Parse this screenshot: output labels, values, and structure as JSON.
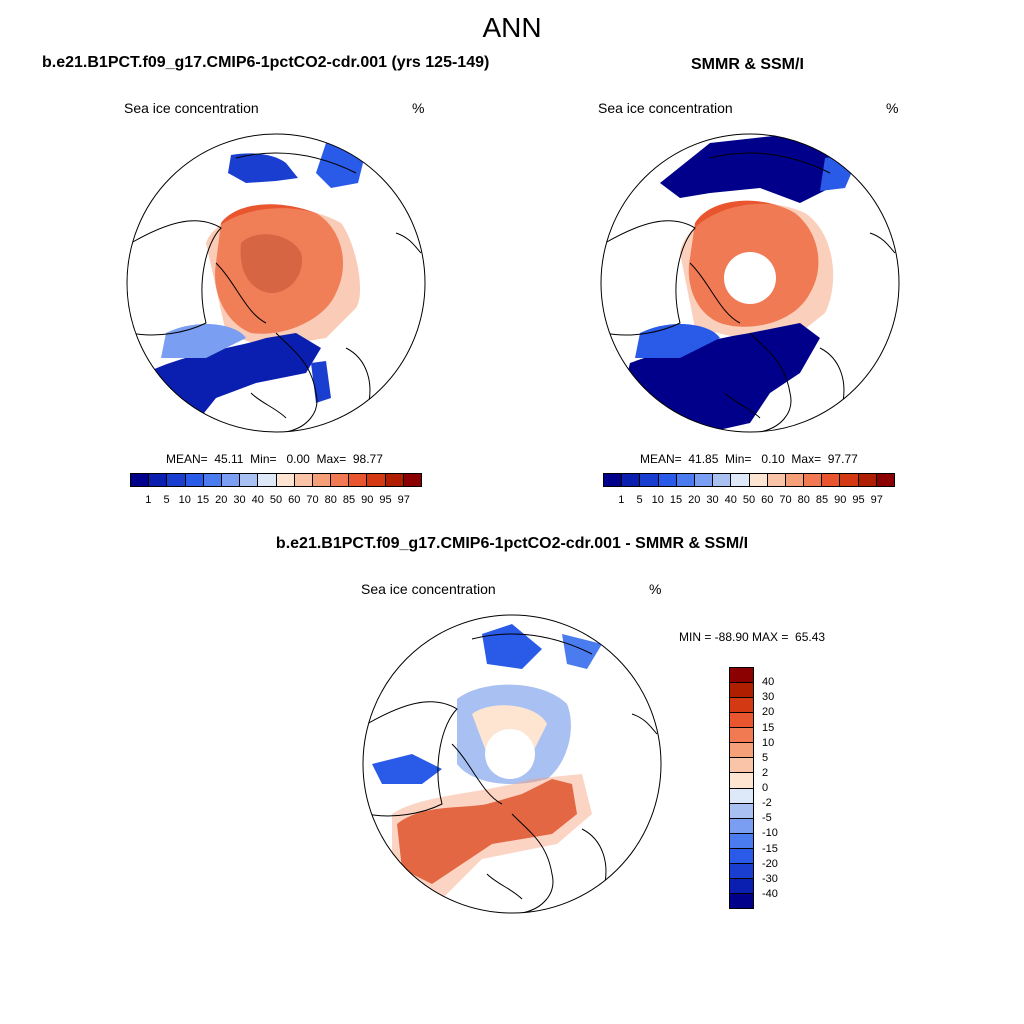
{
  "title": "ANN",
  "colors": {
    "abs_scale": [
      "#00008b",
      "#0a1fb0",
      "#1a3fd0",
      "#2a5ae8",
      "#4a7cf0",
      "#7a9ef2",
      "#a8c0f2",
      "#dde8f8",
      "#fde5d2",
      "#f9c4a8",
      "#f6a07a",
      "#f17a52",
      "#e8552e",
      "#d33a14",
      "#b01e00",
      "#8b0000"
    ],
    "diff_scale": [
      "#8b0000",
      "#b01e00",
      "#d33a14",
      "#e8552e",
      "#f17a52",
      "#f6a07a",
      "#f9c4a8",
      "#fde5d2",
      "#dde8f8",
      "#a8c0f2",
      "#7a9ef2",
      "#4a7cf0",
      "#2a5ae8",
      "#1a3fd0",
      "#0a1fb0",
      "#00008b"
    ],
    "land_outline": "#000000"
  },
  "panels": {
    "model": {
      "title": "b.e21.B1PCT.f09_g17.CMIP6-1pctCO2-cdr.001 (yrs 125-149)",
      "field": "Sea ice concentration",
      "units": "%",
      "stats": "MEAN=  45.11  Min=   0.00  Max=  98.77",
      "colorbar_ticks": [
        "1",
        "5",
        "10",
        "15",
        "20",
        "30",
        "40",
        "50",
        "60",
        "70",
        "80",
        "85",
        "90",
        "95",
        "97"
      ]
    },
    "obs": {
      "title": "SMMR & SSM/I",
      "field": "Sea ice concentration",
      "units": "%",
      "stats": "MEAN=  41.85  Min=   0.10  Max=  97.77",
      "colorbar_ticks": [
        "1",
        "5",
        "10",
        "15",
        "20",
        "30",
        "40",
        "50",
        "60",
        "70",
        "80",
        "85",
        "90",
        "95",
        "97"
      ]
    },
    "diff": {
      "title": "b.e21.B1PCT.f09_g17.CMIP6-1pctCO2-cdr.001 - SMMR & SSM/I",
      "field": "Sea ice concentration",
      "units": "%",
      "stats": "MIN = -88.90 MAX =  65.43",
      "colorbar_ticks": [
        "40",
        "30",
        "20",
        "15",
        "10",
        "5",
        "2",
        "0",
        "-2",
        "-5",
        "-10",
        "-15",
        "-20",
        "-30",
        "-40"
      ]
    }
  }
}
